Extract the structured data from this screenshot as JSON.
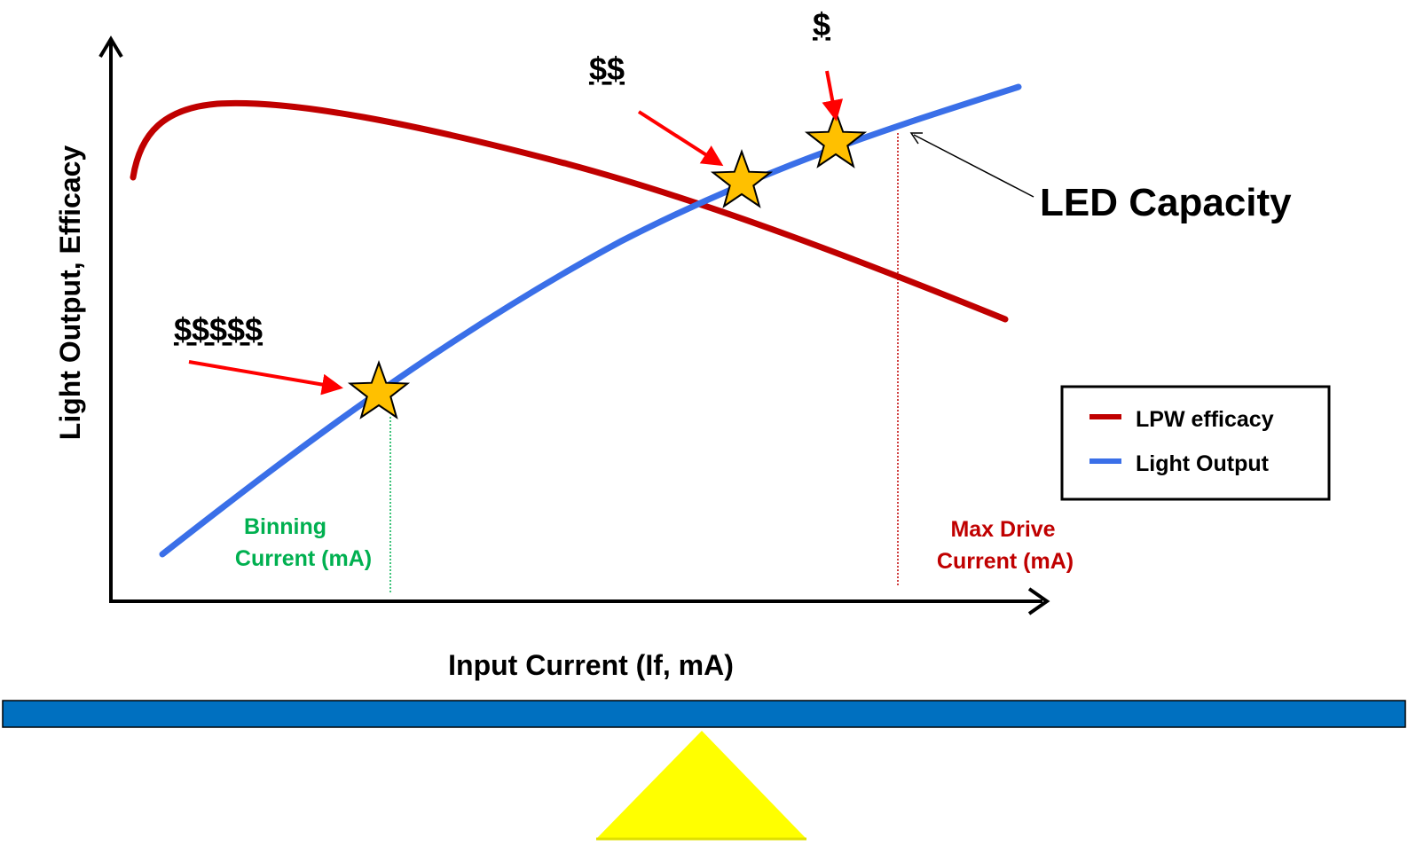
{
  "axes": {
    "y_label": "Light Output, Efficacy",
    "x_label": "Input Current (If, mA)"
  },
  "curves": [
    {
      "name": "LPW efficacy",
      "color": "#c00000"
    },
    {
      "name": "Light Output",
      "color": "#3a6fe8"
    }
  ],
  "annotations": {
    "binning": {
      "line1": "Binning",
      "line2": "Current (mA)",
      "color": "#00b050"
    },
    "max_drive": {
      "line1": "Max Drive",
      "line2": "Current (mA)",
      "color": "#c00000"
    },
    "capacity": "LED Capacity"
  },
  "cost_markers": [
    {
      "label": "$$$$$"
    },
    {
      "label": "$$"
    },
    {
      "label": "$"
    }
  ],
  "colors": {
    "star_fill": "#ffc000",
    "arrow": "#ff0000",
    "balance_beam": "#0070c0",
    "fulcrum": "#ffff00"
  }
}
